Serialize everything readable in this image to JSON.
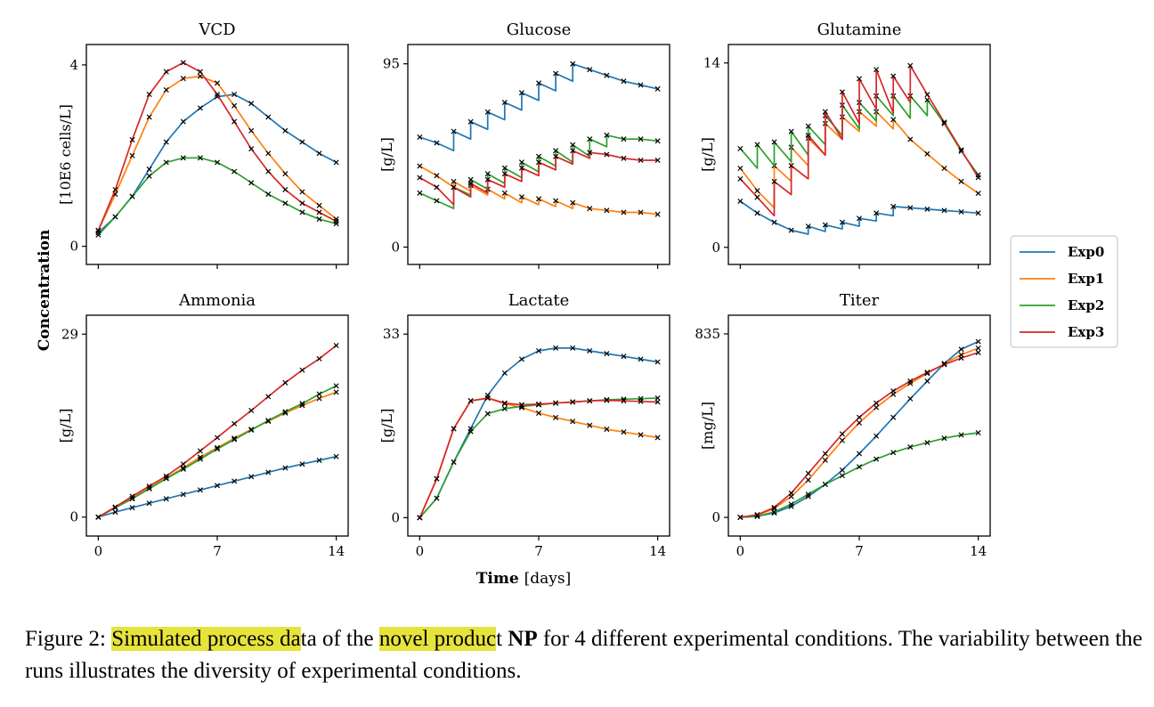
{
  "figure": {
    "ylabel": "Concentration",
    "xlabel_bold": "Time",
    "xlabel_unit": "[days]",
    "caption": {
      "part1": "Figure 2: ",
      "hl1": "Simulated process da",
      "part2": "ta of the ",
      "hl2": "novel produc",
      "part3": "t ",
      "bold": "NP",
      "part4": " for 4 different experimental conditions. The variability between the runs illustrates the diversity of experimental conditions."
    }
  },
  "legend": [
    {
      "name": "Exp0",
      "color": "#1f77b4"
    },
    {
      "name": "Exp1",
      "color": "#ff7f0e"
    },
    {
      "name": "Exp2",
      "color": "#2ca02c"
    },
    {
      "name": "Exp3",
      "color": "#d62728"
    }
  ],
  "chart_data": [
    {
      "type": "line",
      "title": "VCD",
      "ylabel": "[10E6 cells/L]",
      "xticks": [
        0,
        7,
        14
      ],
      "yticks": [
        0,
        4
      ],
      "xlim": [
        -0.7,
        14.7
      ],
      "ylim": [
        -0.4,
        4.45
      ],
      "show_xticklabels": false,
      "series": [
        {
          "name": "Exp0",
          "x": [
            0,
            1,
            2,
            3,
            4,
            5,
            6,
            7,
            8,
            9,
            10,
            11,
            12,
            13,
            14
          ],
          "y": [
            0.3,
            0.65,
            1.1,
            1.7,
            2.3,
            2.75,
            3.05,
            3.3,
            3.35,
            3.15,
            2.85,
            2.55,
            2.3,
            2.05,
            1.85
          ]
        },
        {
          "name": "Exp1",
          "x": [
            0,
            1,
            2,
            3,
            4,
            5,
            6,
            7,
            8,
            9,
            10,
            11,
            12,
            13,
            14
          ],
          "y": [
            0.35,
            1.15,
            2.0,
            2.85,
            3.45,
            3.7,
            3.75,
            3.6,
            3.1,
            2.55,
            2.05,
            1.6,
            1.2,
            0.9,
            0.6
          ]
        },
        {
          "name": "Exp2",
          "x": [
            0,
            1,
            2,
            3,
            4,
            5,
            6,
            7,
            8,
            9,
            10,
            11,
            12,
            13,
            14
          ],
          "y": [
            0.25,
            0.65,
            1.1,
            1.55,
            1.85,
            1.95,
            1.95,
            1.85,
            1.65,
            1.4,
            1.15,
            0.95,
            0.75,
            0.6,
            0.5
          ]
        },
        {
          "name": "Exp3",
          "x": [
            0,
            1,
            2,
            3,
            4,
            5,
            6,
            7,
            8,
            9,
            10,
            11,
            12,
            13,
            14
          ],
          "y": [
            0.35,
            1.25,
            2.35,
            3.35,
            3.85,
            4.05,
            3.85,
            3.35,
            2.75,
            2.15,
            1.65,
            1.25,
            0.95,
            0.75,
            0.55
          ]
        }
      ]
    },
    {
      "type": "line",
      "title": "Glucose",
      "ylabel": "[g/L]",
      "xticks": [
        0,
        7,
        14
      ],
      "yticks": [
        0,
        95
      ],
      "xlim": [
        -0.7,
        14.7
      ],
      "ylim": [
        -9,
        105
      ],
      "show_xticklabels": false,
      "series": [
        {
          "name": "Exp0",
          "x": [
            0,
            1,
            2,
            2,
            3,
            3,
            4,
            4,
            5,
            5,
            6,
            6,
            7,
            7,
            8,
            8,
            9,
            9,
            10,
            11,
            12,
            13,
            14
          ],
          "y": [
            57,
            54,
            50,
            60,
            56,
            65,
            61,
            70,
            66,
            75,
            71,
            80,
            76,
            85,
            81,
            90,
            86,
            95,
            92,
            89,
            86,
            84,
            82
          ]
        },
        {
          "name": "Exp1",
          "x": [
            0,
            1,
            2,
            2,
            3,
            3,
            4,
            4,
            5,
            5,
            6,
            6,
            7,
            7,
            8,
            8,
            9,
            9,
            10,
            11,
            12,
            13,
            14
          ],
          "y": [
            42,
            37,
            31,
            34,
            29,
            32,
            27,
            30,
            25,
            28,
            23,
            26,
            22,
            25,
            21,
            24,
            20,
            23,
            20,
            19,
            18,
            18,
            17
          ]
        },
        {
          "name": "Exp2",
          "x": [
            0,
            1,
            2,
            2,
            3,
            3,
            4,
            4,
            5,
            5,
            6,
            6,
            7,
            7,
            8,
            8,
            9,
            9,
            10,
            10,
            11,
            11,
            12,
            13,
            14
          ],
          "y": [
            28,
            24,
            20,
            31,
            27,
            35,
            30,
            38,
            33,
            41,
            36,
            44,
            39,
            47,
            42,
            50,
            44,
            53,
            47,
            56,
            52,
            58,
            56,
            56,
            55
          ]
        },
        {
          "name": "Exp3",
          "x": [
            0,
            1,
            2,
            2,
            3,
            3,
            4,
            4,
            5,
            5,
            6,
            6,
            7,
            7,
            8,
            8,
            9,
            9,
            10,
            10,
            11,
            12,
            13,
            14
          ],
          "y": [
            36,
            31,
            22,
            31,
            26,
            33,
            28,
            35,
            31,
            38,
            34,
            41,
            37,
            44,
            40,
            47,
            43,
            50,
            46,
            49,
            48,
            46,
            45,
            45
          ]
        }
      ]
    },
    {
      "type": "line",
      "title": "Glutamine",
      "ylabel": "[g/L]",
      "xticks": [
        0,
        7,
        14
      ],
      "yticks": [
        0,
        14
      ],
      "xlim": [
        -0.7,
        14.7
      ],
      "ylim": [
        -1.3,
        15.4
      ],
      "show_xticklabels": false,
      "series": [
        {
          "name": "Exp0",
          "x": [
            0,
            1,
            2,
            3,
            4,
            4,
            5,
            5,
            6,
            6,
            7,
            7,
            8,
            8,
            9,
            9,
            10,
            11,
            12,
            13,
            14
          ],
          "y": [
            3.5,
            2.6,
            1.9,
            1.3,
            1.0,
            1.6,
            1.2,
            1.7,
            1.4,
            1.9,
            1.6,
            2.2,
            2.0,
            2.6,
            2.4,
            3.1,
            3.0,
            2.9,
            2.8,
            2.7,
            2.6
          ]
        },
        {
          "name": "Exp1",
          "x": [
            0,
            1,
            2,
            2,
            3,
            3,
            4,
            4,
            5,
            5,
            6,
            6,
            7,
            7,
            8,
            8,
            9,
            9,
            10,
            11,
            12,
            13,
            14
          ],
          "y": [
            6.0,
            4.3,
            3.0,
            6.2,
            5.0,
            7.6,
            6.2,
            8.3,
            7.0,
            9.4,
            8.2,
            9.9,
            8.8,
            10.3,
            9.2,
            10.3,
            9.0,
            9.7,
            8.2,
            7.1,
            6.0,
            5.0,
            4.1
          ]
        },
        {
          "name": "Exp2",
          "x": [
            0,
            1,
            1,
            2,
            2,
            3,
            3,
            4,
            4,
            5,
            5,
            6,
            6,
            7,
            7,
            8,
            8,
            9,
            9,
            10,
            10,
            11,
            11,
            12,
            13,
            14
          ],
          "y": [
            7.5,
            6.0,
            7.8,
            6.2,
            8.0,
            6.5,
            8.8,
            7.0,
            9.2,
            7.8,
            10.0,
            8.5,
            10.8,
            9.0,
            11.0,
            9.6,
            11.5,
            10.0,
            11.5,
            9.8,
            11.5,
            10.0,
            11.2,
            9.4,
            7.3,
            5.5
          ]
        },
        {
          "name": "Exp3",
          "x": [
            0,
            1,
            2,
            2,
            3,
            3,
            4,
            4,
            5,
            5,
            6,
            6,
            7,
            7,
            8,
            8,
            9,
            9,
            10,
            10,
            11,
            12,
            13,
            14
          ],
          "y": [
            5.2,
            3.8,
            2.4,
            5.0,
            4.0,
            6.2,
            5.2,
            8.5,
            7.0,
            10.3,
            8.2,
            11.8,
            9.4,
            12.8,
            10.5,
            13.5,
            10.2,
            13.0,
            11.0,
            13.8,
            11.6,
            9.5,
            7.4,
            5.3
          ]
        }
      ]
    },
    {
      "type": "line",
      "title": "Ammonia",
      "ylabel": "[g/L]",
      "xticks": [
        0,
        7,
        14
      ],
      "yticks": [
        0,
        29
      ],
      "xlim": [
        -0.7,
        14.7
      ],
      "ylim": [
        -3,
        32
      ],
      "show_xticklabels": true,
      "series": [
        {
          "name": "Exp0",
          "x": [
            0,
            1,
            2,
            3,
            4,
            5,
            6,
            7,
            8,
            9,
            10,
            11,
            12,
            13,
            14
          ],
          "y": [
            0,
            0.8,
            1.5,
            2.2,
            2.9,
            3.6,
            4.3,
            5.0,
            5.7,
            6.4,
            7.1,
            7.8,
            8.4,
            9.0,
            9.6
          ]
        },
        {
          "name": "Exp1",
          "x": [
            0,
            1,
            2,
            3,
            4,
            5,
            6,
            7,
            8,
            9,
            10,
            11,
            12,
            13,
            14
          ],
          "y": [
            0,
            1.5,
            3.0,
            4.6,
            6.2,
            7.8,
            9.5,
            11.0,
            12.5,
            13.9,
            15.2,
            16.5,
            17.7,
            18.8,
            19.8
          ]
        },
        {
          "name": "Exp2",
          "x": [
            0,
            1,
            2,
            3,
            4,
            5,
            6,
            7,
            8,
            9,
            10,
            11,
            12,
            13,
            14
          ],
          "y": [
            0,
            1.5,
            2.9,
            4.5,
            6.1,
            7.6,
            9.2,
            10.8,
            12.3,
            13.8,
            15.3,
            16.7,
            18.0,
            19.5,
            20.8
          ]
        },
        {
          "name": "Exp3",
          "x": [
            0,
            1,
            2,
            3,
            4,
            5,
            6,
            7,
            8,
            9,
            10,
            11,
            12,
            13,
            14
          ],
          "y": [
            0,
            1.6,
            3.3,
            4.9,
            6.5,
            8.4,
            10.5,
            12.6,
            14.8,
            16.9,
            19.1,
            21.3,
            23.3,
            25.1,
            27.2
          ]
        }
      ]
    },
    {
      "type": "line",
      "title": "Lactate",
      "ylabel": "[g/L]",
      "xticks": [
        0,
        7,
        14
      ],
      "yticks": [
        0,
        33
      ],
      "xlim": [
        -0.7,
        14.7
      ],
      "ylim": [
        -3.3,
        36.4
      ],
      "show_xticklabels": true,
      "series": [
        {
          "name": "Exp0",
          "x": [
            0,
            1,
            2,
            3,
            4,
            5,
            6,
            7,
            8,
            9,
            10,
            11,
            12,
            13,
            14
          ],
          "y": [
            0,
            3.5,
            10,
            16,
            22,
            26,
            28.5,
            30,
            30.5,
            30.5,
            30,
            29.5,
            29,
            28.5,
            28
          ]
        },
        {
          "name": "Exp1",
          "x": [
            0,
            1,
            2,
            3,
            4,
            5,
            6,
            7,
            8,
            9,
            10,
            11,
            12,
            13,
            14
          ],
          "y": [
            0,
            7,
            16,
            21,
            21.5,
            20.5,
            19.8,
            18.8,
            18.0,
            17.3,
            16.6,
            15.9,
            15.4,
            14.9,
            14.4
          ]
        },
        {
          "name": "Exp2",
          "x": [
            0,
            1,
            2,
            3,
            4,
            5,
            6,
            7,
            8,
            9,
            10,
            11,
            12,
            13,
            14
          ],
          "y": [
            0,
            3.5,
            10,
            15.5,
            18.7,
            19.6,
            20.0,
            20.3,
            20.6,
            20.8,
            21.0,
            21.2,
            21.3,
            21.4,
            21.5
          ]
        },
        {
          "name": "Exp3",
          "x": [
            0,
            1,
            2,
            3,
            4,
            5,
            6,
            7,
            8,
            9,
            10,
            11,
            12,
            13,
            14
          ],
          "y": [
            0,
            7,
            16,
            21,
            21.5,
            20.6,
            20.3,
            20.4,
            20.6,
            20.8,
            21.0,
            21.1,
            21.0,
            20.9,
            20.8
          ]
        }
      ]
    },
    {
      "type": "line",
      "title": "Titer",
      "ylabel": "[mg/L]",
      "xticks": [
        0,
        7,
        14
      ],
      "yticks": [
        0,
        835
      ],
      "xlim": [
        -0.7,
        14.7
      ],
      "ylim": [
        -85,
        920
      ],
      "show_xticklabels": true,
      "series": [
        {
          "name": "Exp0",
          "x": [
            0,
            1,
            2,
            3,
            4,
            5,
            6,
            7,
            8,
            9,
            10,
            11,
            12,
            13,
            14
          ],
          "y": [
            0,
            5,
            20,
            50,
            95,
            150,
            215,
            290,
            370,
            455,
            540,
            620,
            700,
            765,
            800
          ]
        },
        {
          "name": "Exp1",
          "x": [
            0,
            1,
            2,
            3,
            4,
            5,
            6,
            7,
            8,
            9,
            10,
            11,
            12,
            13,
            14
          ],
          "y": [
            0,
            10,
            40,
            95,
            170,
            260,
            350,
            430,
            500,
            560,
            610,
            655,
            700,
            740,
            770
          ]
        },
        {
          "name": "Exp2",
          "x": [
            0,
            1,
            2,
            3,
            4,
            5,
            6,
            7,
            8,
            9,
            10,
            11,
            12,
            13,
            14
          ],
          "y": [
            0,
            5,
            25,
            60,
            105,
            150,
            190,
            230,
            265,
            295,
            320,
            340,
            360,
            375,
            385
          ]
        },
        {
          "name": "Exp3",
          "x": [
            0,
            1,
            2,
            3,
            4,
            5,
            6,
            7,
            8,
            9,
            10,
            11,
            12,
            13,
            14
          ],
          "y": [
            0,
            12,
            45,
            110,
            200,
            290,
            380,
            455,
            520,
            575,
            620,
            660,
            695,
            725,
            750
          ]
        }
      ]
    }
  ]
}
